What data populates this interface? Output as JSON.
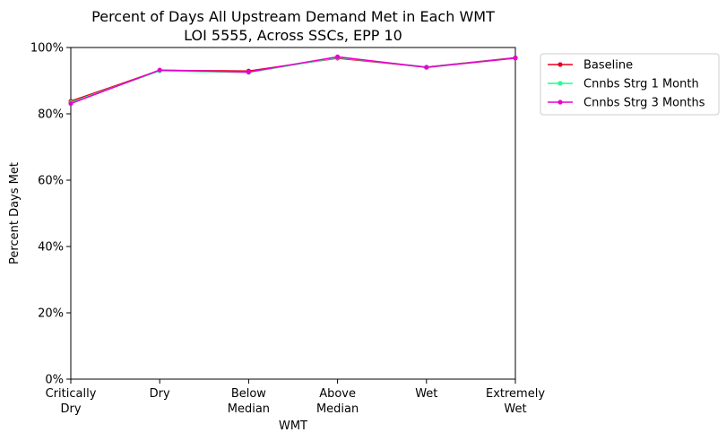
{
  "chart_data": {
    "type": "line",
    "title": "Percent of Days All Upstream Demand Met in Each WMT",
    "subtitle": "LOI 5555, Across SSCs, EPP 10",
    "xlabel": "WMT",
    "ylabel": "Percent Days Met",
    "categories": [
      [
        "Critically",
        "Dry"
      ],
      [
        "Dry"
      ],
      [
        "Below",
        "Median"
      ],
      [
        "Above",
        "Median"
      ],
      [
        "Wet"
      ],
      [
        "Extremely",
        "Wet"
      ]
    ],
    "ylim": [
      0,
      100
    ],
    "yticks": [
      0,
      20,
      40,
      60,
      80,
      100
    ],
    "ytick_labels": [
      "0%",
      "20%",
      "40%",
      "60%",
      "80%",
      "100%"
    ],
    "grid": false,
    "legend_position": "outside-top-right",
    "series": [
      {
        "name": "Baseline",
        "color": "#e8001c",
        "values": [
          83.8,
          93.1,
          92.9,
          96.8,
          94.1,
          96.9
        ]
      },
      {
        "name": "Cnnbs Strg 1 Month",
        "color": "#1fff8f",
        "values": [
          83.4,
          93.0,
          92.5,
          97.0,
          94.1,
          96.8
        ]
      },
      {
        "name": "Cnnbs Strg 3 Months",
        "color": "#ea00d2",
        "values": [
          83.1,
          93.2,
          92.6,
          97.2,
          94.0,
          96.8
        ]
      }
    ]
  }
}
